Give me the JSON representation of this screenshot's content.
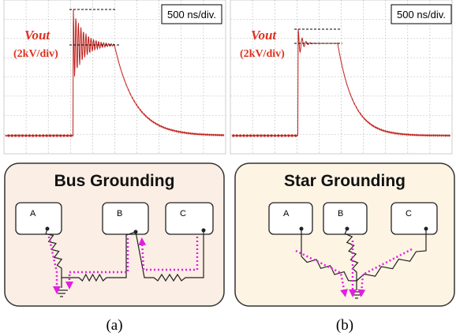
{
  "panels": [
    {
      "timebase": "500 ns/div.",
      "signal": "Vout",
      "scale": "(2kV/div)"
    },
    {
      "timebase": "500 ns/div.",
      "signal": "Vout",
      "scale": "(2kV/div)"
    }
  ],
  "diagrams": [
    {
      "title": "Bus Grounding",
      "nodes": [
        "A",
        "B",
        "C"
      ]
    },
    {
      "title": "Star Grounding",
      "nodes": [
        "A",
        "B",
        "C"
      ]
    }
  ],
  "captions": [
    "(a)",
    "(b)"
  ]
}
